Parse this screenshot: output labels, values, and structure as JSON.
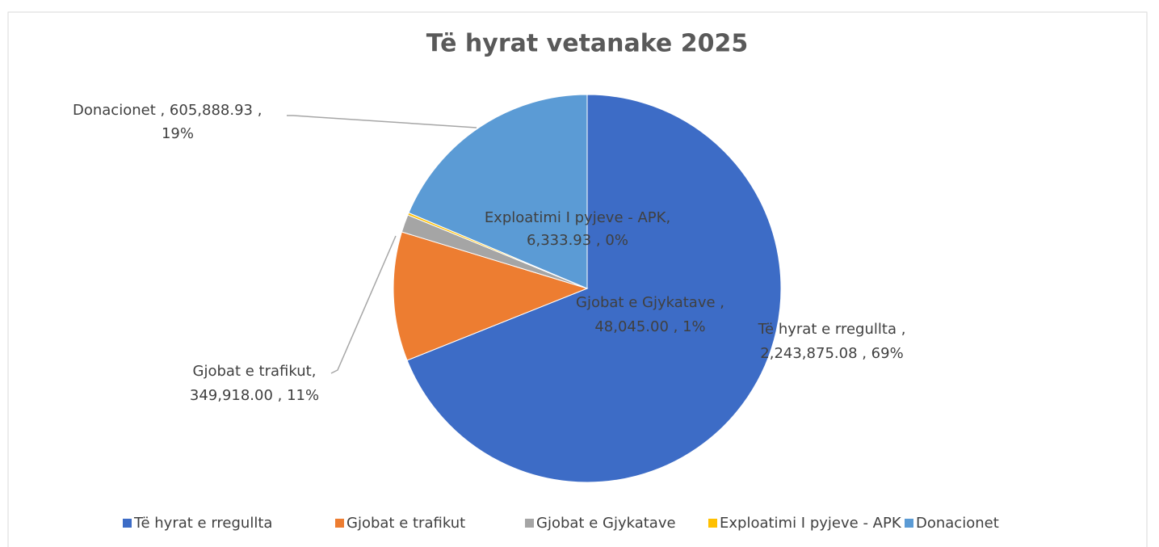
{
  "chart_data": {
    "type": "pie",
    "title": "Të hyrat vetanake 2025",
    "categories": [
      "Të hyrat e rregullta",
      "Gjobat e trafikut",
      "Gjobat e Gjykatave",
      "Exploatimi I pyjeve - APK",
      "Donacionet"
    ],
    "values": [
      2243875.08,
      349918.0,
      48045.0,
      6333.93,
      605888.93
    ],
    "data_labels": [
      [
        "Të hyrat e rregullta ,",
        "2,243,875.08 , 69%"
      ],
      [
        "Gjobat e trafikut,",
        "349,918.00 , 11%"
      ],
      [
        "Gjobat e Gjykatave ,",
        "48,045.00 , 1%"
      ],
      [
        "Exploatimi I pyjeve - APK,",
        "6,333.93 , 0%"
      ],
      [
        "Donacionet ,  605,888.93 ,",
        "19%"
      ]
    ],
    "colors": [
      "#3d6cc6",
      "#ed7d31",
      "#a5a5a5",
      "#ffc000",
      "#5b9bd5"
    ],
    "legend": "bottom"
  }
}
